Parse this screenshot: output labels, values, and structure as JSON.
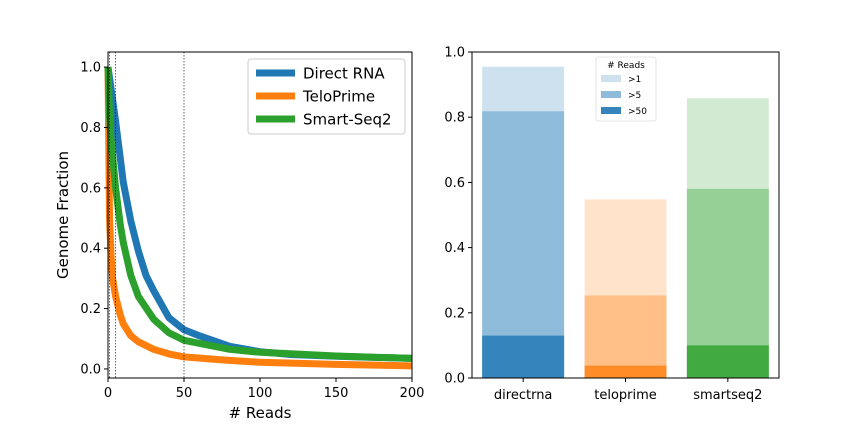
{
  "chart_data": [
    {
      "type": "line",
      "title": "",
      "xlabel": "# Reads",
      "ylabel": "Genome Fraction",
      "xlim": [
        0,
        200
      ],
      "ylim": [
        -0.03,
        1.05
      ],
      "xticks": [
        "0",
        "50",
        "100",
        "150",
        "200"
      ],
      "yticks": [
        "0.0",
        "0.2",
        "0.4",
        "0.6",
        "0.8",
        "1.0"
      ],
      "xtick_values": [
        0,
        50,
        100,
        150,
        200
      ],
      "ytick_values": [
        0,
        0.2,
        0.4,
        0.6,
        0.8,
        1.0
      ],
      "vlines": [
        1,
        5,
        50
      ],
      "legend_position": "top-right",
      "grid": false,
      "series": [
        {
          "name": "Direct RNA",
          "color": "#1f77b4",
          "x": [
            0,
            2,
            5,
            8,
            10,
            15,
            20,
            25,
            30,
            40,
            50,
            60,
            80,
            100,
            120,
            150,
            200
          ],
          "y": [
            1.0,
            0.93,
            0.82,
            0.7,
            0.62,
            0.49,
            0.39,
            0.31,
            0.26,
            0.17,
            0.13,
            0.11,
            0.075,
            0.057,
            0.048,
            0.042,
            0.035
          ]
        },
        {
          "name": "TeloPrime",
          "color": "#ff7f0e",
          "x": [
            0,
            1,
            2,
            3,
            5,
            8,
            10,
            15,
            20,
            30,
            40,
            50,
            75,
            100,
            150,
            200
          ],
          "y": [
            1.0,
            0.5,
            0.38,
            0.3,
            0.24,
            0.18,
            0.15,
            0.11,
            0.09,
            0.065,
            0.05,
            0.04,
            0.03,
            0.022,
            0.015,
            0.01
          ]
        },
        {
          "name": "Smart-Seq2",
          "color": "#2ca02c",
          "x": [
            0,
            1,
            2,
            5,
            8,
            10,
            15,
            20,
            30,
            40,
            50,
            60,
            80,
            100,
            150,
            200
          ],
          "y": [
            1.0,
            0.84,
            0.76,
            0.6,
            0.48,
            0.42,
            0.31,
            0.24,
            0.165,
            0.12,
            0.095,
            0.085,
            0.065,
            0.055,
            0.043,
            0.035
          ]
        }
      ]
    },
    {
      "type": "bar",
      "title": "",
      "categories": [
        "directrna",
        "teloprime",
        "smartseq2"
      ],
      "ylim": [
        0,
        1.0
      ],
      "yticks": [
        "0.0",
        "0.2",
        "0.4",
        "0.6",
        "0.8",
        "1.0"
      ],
      "ytick_values": [
        0,
        0.2,
        0.4,
        0.6,
        0.8,
        1.0
      ],
      "legend_title": "# Reads",
      "legend_position": "top-center",
      "category_colors": [
        "#1f77b4",
        "#ff7f0e",
        "#2ca02c"
      ],
      "series": [
        {
          "name": ">1",
          "alpha": 0.22,
          "values": [
            0.955,
            0.548,
            0.858
          ]
        },
        {
          "name": ">5",
          "alpha": 0.5,
          "values": [
            0.818,
            0.253,
            0.58
          ]
        },
        {
          "name": ">50",
          "alpha": 0.9,
          "values": [
            0.13,
            0.038,
            0.1
          ]
        }
      ]
    }
  ]
}
